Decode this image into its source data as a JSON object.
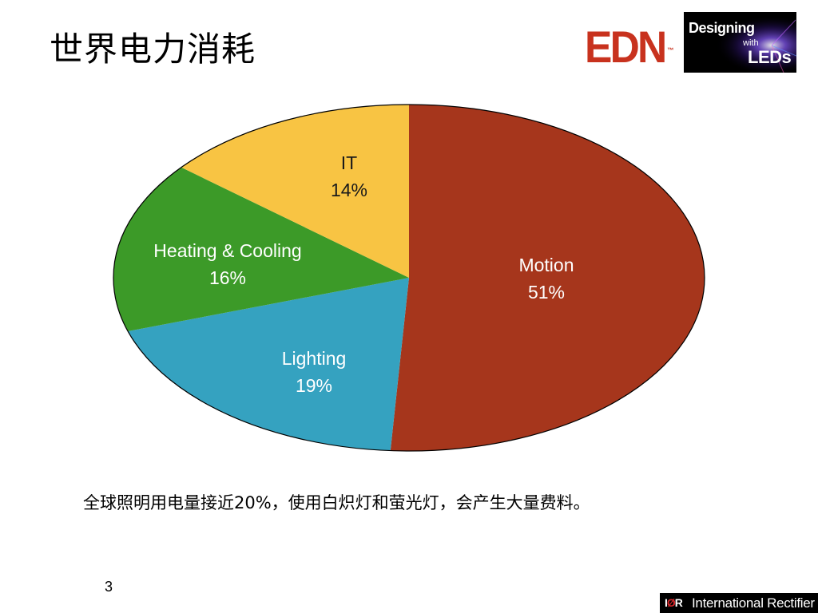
{
  "slide": {
    "title": "世界电力消耗",
    "caption": "全球照明用电量接近20%，使用白炽灯和萤光灯，会产生大量费料。",
    "page_number": "3"
  },
  "logos": {
    "edn": {
      "text": "EDN",
      "tm": "™"
    },
    "designing_with_leds": {
      "line1": "Designing",
      "line2": "with",
      "line3": "LEDs"
    },
    "international_rectifier": {
      "mark_left": "I",
      "mark_mid": "Ø",
      "mark_right": "R",
      "name": "International Rectifier"
    }
  },
  "chart_data": {
    "type": "pie",
    "title": "",
    "categories": [
      "Motion",
      "Lighting",
      "Heating & Cooling",
      "IT"
    ],
    "values": [
      51,
      19,
      16,
      14
    ],
    "value_labels": [
      "51%",
      "19%",
      "16%",
      "14%"
    ],
    "colors": [
      "#a6361c",
      "#35a2c0",
      "#3c9a28",
      "#f8c443"
    ],
    "label_colors": [
      "#ffffff",
      "#ffffff",
      "#ffffff",
      "#1a1a1a"
    ],
    "start": "top, clockwise",
    "outline_color": "#000000",
    "legend": "none (labels inside slices)"
  }
}
